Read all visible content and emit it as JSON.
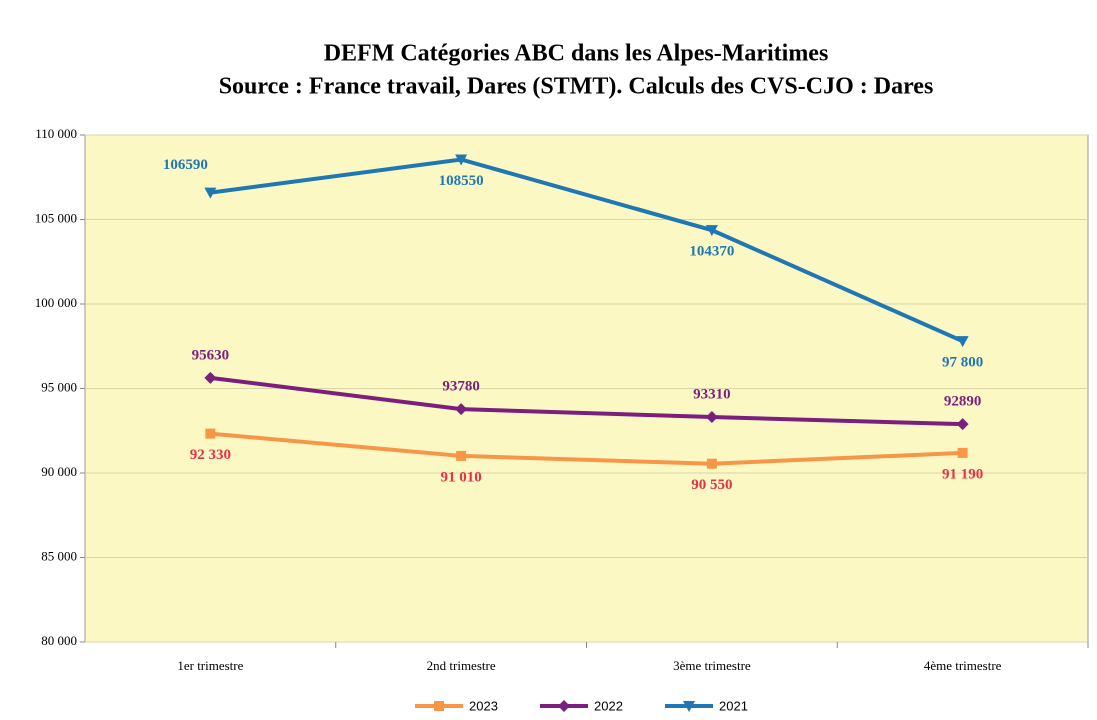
{
  "chart_data": {
    "type": "line",
    "title": "DEFM Catégories ABC dans les Alpes-Maritimes",
    "subtitle": "Source : France travail, Dares (STMT). Calculs des CVS-CJO : Dares",
    "categories": [
      "1er trimestre",
      "2nd  trimestre",
      "3ème trimestre",
      "4ème trimestre"
    ],
    "series": [
      {
        "name": "2023",
        "color": "#f79646",
        "label_color": "#e8304a",
        "marker": "square",
        "label_side": "below",
        "values": [
          92330,
          91010,
          90550,
          91190
        ],
        "value_labels": [
          "92 330",
          "91 010",
          "90 550",
          "91 190"
        ]
      },
      {
        "name": "2022",
        "color": "#7b1f7e",
        "label_color": "#7b1f7e",
        "marker": "diamond",
        "label_side": "above",
        "values": [
          95630,
          93780,
          93310,
          92890
        ]
      },
      {
        "name": "2021",
        "color": "#1f77b4",
        "label_color": "#1f77b4",
        "marker": "triangle-down",
        "label_side": "below",
        "values": [
          106590,
          108550,
          104370,
          97800
        ],
        "value_labels": [
          "106590",
          "108550",
          "104370",
          "97 800"
        ]
      }
    ],
    "ylim": [
      80000,
      110000
    ],
    "yticks": [
      {
        "value": 80000,
        "label": "80 000"
      },
      {
        "value": 85000,
        "label": "85 000"
      },
      {
        "value": 90000,
        "label": "90 000"
      },
      {
        "value": 95000,
        "label": "95 000"
      },
      {
        "value": 100000,
        "label": "100 000"
      },
      {
        "value": 105000,
        "label": "105 000"
      },
      {
        "value": 110000,
        "label": "110 000"
      }
    ],
    "grid": true,
    "plot_background": "#fbf8c4",
    "legend": "bottom"
  }
}
